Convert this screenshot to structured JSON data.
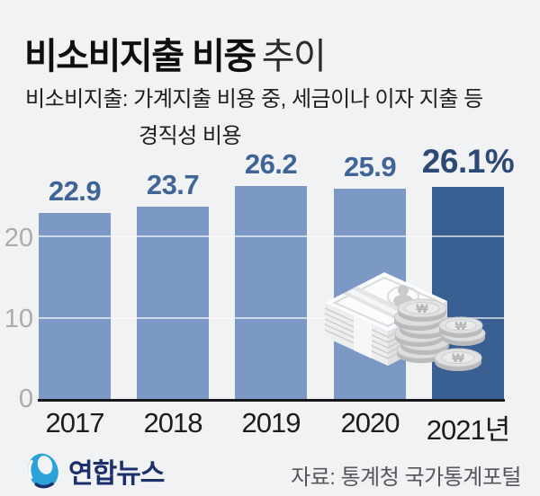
{
  "title": {
    "main": "비소비지출 비중",
    "suffix": "추이"
  },
  "subtitle": {
    "line1": "비소비지출: 가계지출 비용 중, 세금이나 이자 지출 등",
    "line2": "경직성 비용"
  },
  "chart_data": {
    "type": "bar",
    "title": "비소비지출 비중 추이",
    "categories": [
      "2017",
      "2018",
      "2019",
      "2020",
      "2021년"
    ],
    "values": [
      22.9,
      23.7,
      26.2,
      25.9,
      26.1
    ],
    "value_labels": [
      "22.9",
      "23.7",
      "26.2",
      "25.9",
      "26.1%"
    ],
    "unit": "%",
    "ylim": [
      0,
      28
    ],
    "yticks": [
      20,
      10,
      0
    ],
    "ytick_labels": [
      "20",
      "10",
      "0"
    ],
    "grid": true,
    "legend": "none",
    "highlight_index": 4,
    "bar_color": "#7c98c4",
    "highlight_color": "#3a5f92",
    "label_color": "#3f6498",
    "highlight_label_color": "#2c4a75"
  },
  "illustration": {
    "name": "banknote-stack-and-won-coins",
    "won_symbol": "₩"
  },
  "footer": {
    "logo_text": "연합뉴스",
    "source": "자료: 통계청 국가통계포털"
  },
  "colors": {
    "background": "#f1f2f4",
    "baseline": "#18181c",
    "ytick": "#ababad",
    "logo_blue": "#2ba2d8",
    "logo_navy": "#1b2f6b"
  }
}
